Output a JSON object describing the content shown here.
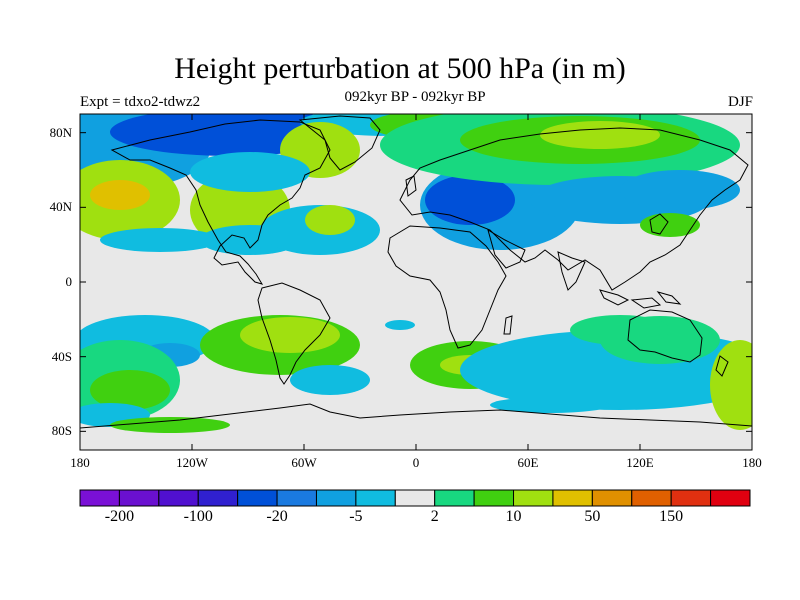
{
  "title": "Height perturbation at 500 hPa (in m)",
  "subtitle": "092kyr BP - 092kyr BP",
  "left_label": "Expt = tdxo2-tdwz2",
  "right_label": "DJF",
  "lat_ticks": [
    {
      "label": "80N",
      "lat": 80
    },
    {
      "label": "40N",
      "lat": 40
    },
    {
      "label": "0",
      "lat": 0
    },
    {
      "label": "40S",
      "lat": -40
    },
    {
      "label": "80S",
      "lat": -80
    }
  ],
  "lon_ticks": [
    {
      "label": "180",
      "lon": -180
    },
    {
      "label": "120W",
      "lon": -120
    },
    {
      "label": "60W",
      "lon": -60
    },
    {
      "label": "0",
      "lon": 0
    },
    {
      "label": "60E",
      "lon": 60
    },
    {
      "label": "120E",
      "lon": 120
    },
    {
      "label": "180",
      "lon": 180
    }
  ],
  "colorbar": {
    "colors": [
      "#7a10d6",
      "#6a10d0",
      "#5010d0",
      "#3020d0",
      "#0050d8",
      "#1a7ae0",
      "#10a0e0",
      "#10bce0",
      "#e8e8e8",
      "#18d880",
      "#40d010",
      "#a0e010",
      "#e0c000",
      "#e09000",
      "#e06000",
      "#e03010",
      "#e00010"
    ],
    "labels": [
      {
        "text": "-200",
        "index": 1
      },
      {
        "text": "-100",
        "index": 3
      },
      {
        "text": "-20",
        "index": 5
      },
      {
        "text": "-5",
        "index": 7
      },
      {
        "text": "2",
        "index": 9
      },
      {
        "text": "10",
        "index": 11
      },
      {
        "text": "50",
        "index": 13
      },
      {
        "text": "150",
        "index": 15
      }
    ]
  },
  "background_color": "#e8e8e8"
}
